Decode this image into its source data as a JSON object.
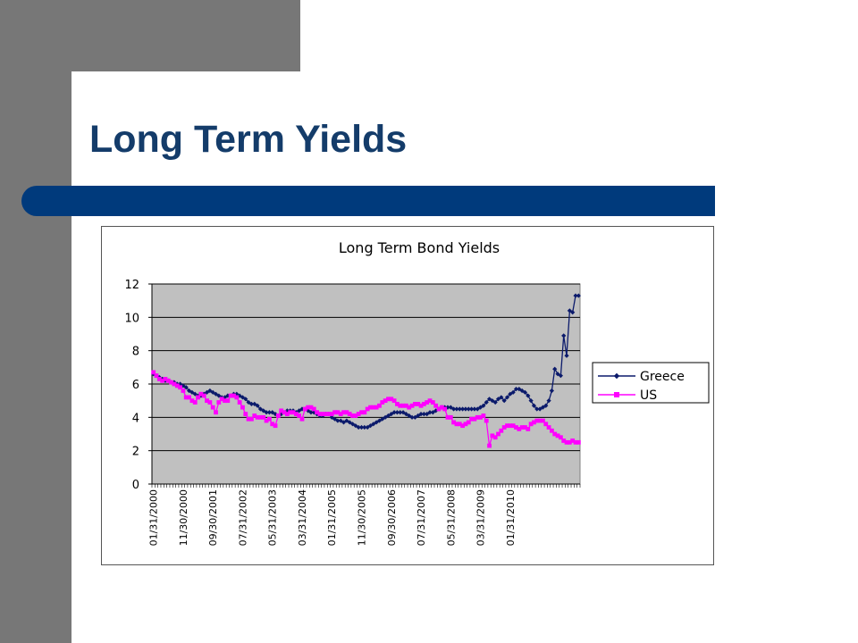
{
  "slide": {
    "title": "Long Term Yields"
  },
  "colors": {
    "greece": "#0b1a6b",
    "us": "#ff00ff",
    "plot_bg": "#c0c0c0",
    "title_bar": "#003a7c",
    "sidebar": "#777777"
  },
  "chart_data": {
    "type": "line",
    "title": "Long Term Bond Yields",
    "xlabel": "",
    "ylabel": "",
    "ylim": [
      0,
      12
    ],
    "yticks": [
      0,
      2,
      4,
      6,
      8,
      10,
      12
    ],
    "grid": "horizontal",
    "legend_position": "right",
    "x_tick_labels": [
      "01/31/2000",
      "11/30/2000",
      "09/30/2001",
      "07/31/2002",
      "05/31/2003",
      "03/31/2004",
      "01/31/2005",
      "11/30/2005",
      "09/30/2006",
      "07/31/2007",
      "05/31/2008",
      "03/31/2009",
      "01/31/2010"
    ],
    "x_start": "2000-01",
    "x_end": "2010-12",
    "series": [
      {
        "name": "Greece",
        "marker": "diamond",
        "color": "#0b1a6b",
        "values": [
          6.6,
          6.5,
          6.4,
          6.3,
          6.2,
          6.2,
          6.1,
          6.1,
          6.0,
          6.0,
          5.9,
          5.8,
          5.6,
          5.5,
          5.4,
          5.3,
          5.3,
          5.4,
          5.5,
          5.6,
          5.5,
          5.4,
          5.3,
          5.2,
          5.2,
          5.3,
          5.3,
          5.4,
          5.4,
          5.3,
          5.2,
          5.1,
          4.9,
          4.8,
          4.8,
          4.7,
          4.5,
          4.4,
          4.3,
          4.3,
          4.3,
          4.2,
          4.1,
          4.2,
          4.3,
          4.4,
          4.4,
          4.4,
          4.3,
          4.4,
          4.5,
          4.5,
          4.4,
          4.3,
          4.3,
          4.2,
          4.1,
          4.1,
          4.2,
          4.2,
          4.0,
          3.9,
          3.8,
          3.8,
          3.7,
          3.8,
          3.7,
          3.6,
          3.5,
          3.4,
          3.4,
          3.4,
          3.4,
          3.5,
          3.6,
          3.7,
          3.8,
          3.9,
          4.0,
          4.1,
          4.2,
          4.3,
          4.3,
          4.3,
          4.3,
          4.2,
          4.1,
          4.0,
          4.0,
          4.1,
          4.2,
          4.2,
          4.2,
          4.3,
          4.3,
          4.4,
          4.5,
          4.6,
          4.6,
          4.6,
          4.6,
          4.5,
          4.5,
          4.5,
          4.5,
          4.5,
          4.5,
          4.5,
          4.5,
          4.5,
          4.6,
          4.7,
          4.9,
          5.1,
          5.0,
          4.9,
          5.1,
          5.2,
          5.0,
          5.2,
          5.4,
          5.5,
          5.7,
          5.7,
          5.6,
          5.5,
          5.3,
          5.0,
          4.7,
          4.5,
          4.5,
          4.6,
          4.7,
          5.0,
          5.6,
          6.9,
          6.6,
          6.5,
          8.9,
          7.7,
          10.4,
          10.3,
          11.3,
          11.3
        ]
      },
      {
        "name": "US",
        "marker": "square",
        "color": "#ff00ff",
        "values": [
          6.7,
          6.5,
          6.3,
          6.2,
          6.3,
          6.2,
          6.1,
          6.0,
          5.9,
          5.8,
          5.6,
          5.2,
          5.2,
          5.0,
          4.9,
          5.2,
          5.4,
          5.3,
          5.0,
          4.9,
          4.6,
          4.3,
          4.9,
          5.1,
          5.0,
          5.0,
          5.3,
          5.3,
          5.2,
          4.9,
          4.6,
          4.2,
          3.9,
          3.9,
          4.1,
          4.0,
          4.0,
          4.0,
          3.8,
          3.9,
          3.6,
          3.5,
          4.1,
          4.4,
          4.3,
          4.2,
          4.3,
          4.3,
          4.2,
          4.1,
          3.9,
          4.5,
          4.6,
          4.6,
          4.5,
          4.3,
          4.2,
          4.2,
          4.2,
          4.2,
          4.2,
          4.3,
          4.3,
          4.2,
          4.3,
          4.3,
          4.2,
          4.1,
          4.1,
          4.2,
          4.3,
          4.3,
          4.5,
          4.6,
          4.6,
          4.6,
          4.7,
          4.9,
          5.0,
          5.1,
          5.1,
          5.0,
          4.8,
          4.7,
          4.7,
          4.7,
          4.6,
          4.7,
          4.8,
          4.8,
          4.7,
          4.8,
          4.9,
          5.0,
          4.9,
          4.7,
          4.5,
          4.6,
          4.5,
          4.0,
          4.0,
          3.7,
          3.6,
          3.6,
          3.5,
          3.6,
          3.7,
          3.9,
          3.9,
          4.0,
          4.0,
          4.1,
          3.8,
          2.3,
          2.9,
          2.8,
          3.0,
          3.2,
          3.4,
          3.5,
          3.5,
          3.5,
          3.4,
          3.3,
          3.4,
          3.4,
          3.3,
          3.6,
          3.7,
          3.8,
          3.8,
          3.8,
          3.6,
          3.4,
          3.2,
          3.0,
          2.9,
          2.8,
          2.6,
          2.5,
          2.5,
          2.6,
          2.5,
          2.5
        ]
      }
    ]
  }
}
